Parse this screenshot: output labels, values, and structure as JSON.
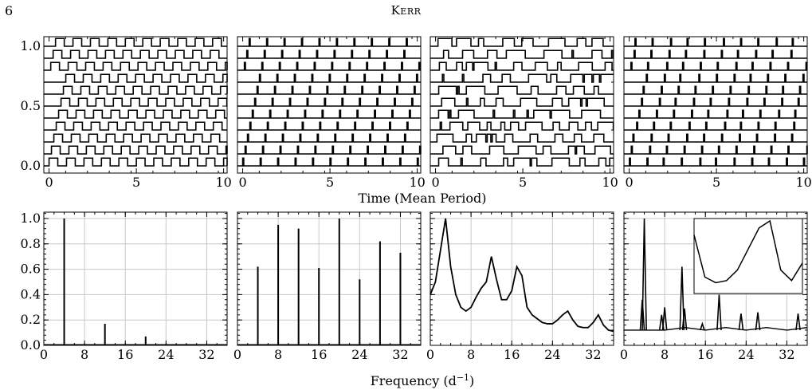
{
  "header": {
    "page_number": "6",
    "running_head": "Kerr"
  },
  "figure": {
    "top_xlabel": "Time (Mean Period)",
    "bottom_xlabel": "Frequency (d",
    "bottom_xlabel_sup": "−1",
    "bottom_xlabel_close": ")"
  },
  "chart_data": [
    {
      "type": "line",
      "panel": "top-1",
      "title": "",
      "xlabel": "",
      "ylabel": "",
      "xlim": [
        -0.3,
        10.2
      ],
      "ylim": [
        -0.06,
        1.08
      ],
      "xticks": [
        0,
        5,
        10
      ],
      "yticks": [
        0.0,
        0.5,
        1.0
      ],
      "grid": false,
      "series_description": "11 square-wave traces offset in y by 0.1, regular rectangular pulses with period ~1 and duty ~0.5",
      "offsets": [
        0.0,
        0.1,
        0.2,
        0.3,
        0.4,
        0.5,
        0.6,
        0.7,
        0.8,
        0.9,
        1.0
      ],
      "amplitude": 0.065,
      "period": 1.0,
      "duty": 0.5
    },
    {
      "type": "line",
      "panel": "top-2",
      "title": "",
      "xlabel": "",
      "ylabel": "",
      "xlim": [
        -0.3,
        10.2
      ],
      "ylim": [
        -0.06,
        1.08
      ],
      "xticks": [
        0,
        5,
        10
      ],
      "yticks": [
        0.0,
        0.5,
        1.0
      ],
      "grid": false,
      "series_description": "11 traces offset by 0.1, narrow pulses (duty ~0.05) with period ~1",
      "offsets": [
        0.0,
        0.1,
        0.2,
        0.3,
        0.4,
        0.5,
        0.6,
        0.7,
        0.8,
        0.9,
        1.0
      ],
      "amplitude": 0.065,
      "period": 1.0,
      "duty": 0.06
    },
    {
      "type": "line",
      "panel": "top-3",
      "title": "",
      "xlabel": "",
      "ylabel": "",
      "xlim": [
        -0.3,
        10.2
      ],
      "ylim": [
        -0.06,
        1.08
      ],
      "xticks": [
        0,
        5,
        10
      ],
      "yticks": [
        0.0,
        0.5,
        1.0
      ],
      "grid": false,
      "series_description": "11 traces offset by 0.1, irregular square waves with random durations",
      "offsets": [
        0.0,
        0.1,
        0.2,
        0.3,
        0.4,
        0.5,
        0.6,
        0.7,
        0.8,
        0.9,
        1.0
      ],
      "amplitude": 0.065,
      "mean_period": 1.0
    },
    {
      "type": "line",
      "panel": "top-4",
      "title": "",
      "xlabel": "",
      "ylabel": "",
      "xlim": [
        -0.3,
        10.2
      ],
      "ylim": [
        -0.06,
        1.08
      ],
      "xticks": [
        0,
        5,
        10
      ],
      "yticks": [
        0.0,
        0.5,
        1.0
      ],
      "grid": false,
      "series_description": "11 traces offset by 0.1, narrow pulses at slightly irregular times",
      "offsets": [
        0.0,
        0.1,
        0.2,
        0.3,
        0.4,
        0.5,
        0.6,
        0.7,
        0.8,
        0.9,
        1.0
      ],
      "amplitude": 0.065,
      "period": 1.0,
      "duty": 0.06
    },
    {
      "type": "bar",
      "panel": "bottom-1",
      "title": "",
      "xlabel": "",
      "ylabel": "",
      "xlim": [
        0,
        36
      ],
      "ylim": [
        0,
        1.05
      ],
      "xticks": [
        0,
        8,
        16,
        24,
        32
      ],
      "yticks": [
        0.0,
        0.2,
        0.4,
        0.6,
        0.8,
        1.0
      ],
      "grid": true,
      "x": [
        4,
        12,
        20,
        28
      ],
      "values": [
        1.0,
        0.17,
        0.07,
        0.01
      ]
    },
    {
      "type": "bar",
      "panel": "bottom-2",
      "title": "",
      "xlabel": "",
      "ylabel": "",
      "xlim": [
        0,
        36
      ],
      "ylim": [
        0,
        1.05
      ],
      "xticks": [
        0,
        8,
        16,
        24,
        32
      ],
      "yticks": [
        0.0,
        0.2,
        0.4,
        0.6,
        0.8,
        1.0
      ],
      "grid": true,
      "x": [
        4,
        8,
        12,
        16,
        20,
        24,
        28,
        32
      ],
      "values": [
        0.62,
        0.95,
        0.92,
        0.61,
        1.0,
        0.52,
        0.82,
        0.73
      ]
    },
    {
      "type": "line",
      "panel": "bottom-3",
      "title": "",
      "xlabel": "",
      "ylabel": "",
      "xlim": [
        0,
        36
      ],
      "ylim": [
        0,
        1.05
      ],
      "xticks": [
        0,
        8,
        16,
        24,
        32
      ],
      "yticks": [
        0.0,
        0.2,
        0.4,
        0.6,
        0.8,
        1.0
      ],
      "grid": true,
      "x": [
        0,
        1,
        2,
        3,
        4,
        5,
        6,
        7,
        8,
        9,
        10,
        11,
        12,
        13,
        14,
        15,
        16,
        17,
        18,
        19,
        20,
        21,
        22,
        23,
        24,
        25,
        26,
        27,
        28,
        29,
        30,
        31,
        32,
        33,
        34,
        35,
        36
      ],
      "y": [
        0.4,
        0.5,
        0.75,
        1.0,
        0.62,
        0.4,
        0.3,
        0.27,
        0.3,
        0.38,
        0.45,
        0.5,
        0.7,
        0.52,
        0.36,
        0.36,
        0.43,
        0.62,
        0.55,
        0.3,
        0.24,
        0.21,
        0.18,
        0.17,
        0.17,
        0.2,
        0.24,
        0.27,
        0.2,
        0.15,
        0.14,
        0.14,
        0.18,
        0.24,
        0.16,
        0.12,
        0.11
      ]
    },
    {
      "type": "line",
      "panel": "bottom-4",
      "title": "",
      "xlabel": "",
      "ylabel": "",
      "xlim": [
        0,
        36
      ],
      "ylim": [
        0,
        1.05
      ],
      "xticks": [
        0,
        8,
        16,
        24,
        32
      ],
      "yticks": [
        0.0,
        0.2,
        0.4,
        0.6,
        0.8,
        1.0
      ],
      "grid": true,
      "baseline": 0.12,
      "x": [
        0,
        4,
        8,
        12,
        16,
        20,
        24,
        28,
        32,
        36
      ],
      "y": [
        0.16,
        1.0,
        0.3,
        0.62,
        0.13,
        0.4,
        0.22,
        0.26,
        0.12,
        0.16
      ],
      "peaks": [
        {
          "x": 3.6,
          "y": 0.36
        },
        {
          "x": 4.0,
          "y": 1.0
        },
        {
          "x": 7.4,
          "y": 0.24
        },
        {
          "x": 8.0,
          "y": 0.3
        },
        {
          "x": 11.4,
          "y": 0.62
        },
        {
          "x": 11.9,
          "y": 0.29
        },
        {
          "x": 15.4,
          "y": 0.17
        },
        {
          "x": 18.7,
          "y": 0.4
        },
        {
          "x": 23.0,
          "y": 0.25
        },
        {
          "x": 26.3,
          "y": 0.26
        },
        {
          "x": 34.2,
          "y": 0.25
        }
      ],
      "inset": {
        "location": "top-right",
        "x": [
          0,
          1,
          2,
          3,
          4,
          5,
          6,
          7,
          8,
          9,
          10
        ],
        "y": [
          0.8,
          0.2,
          0.12,
          0.15,
          0.3,
          0.6,
          0.9,
          1.0,
          0.3,
          0.15,
          0.4
        ]
      }
    }
  ]
}
